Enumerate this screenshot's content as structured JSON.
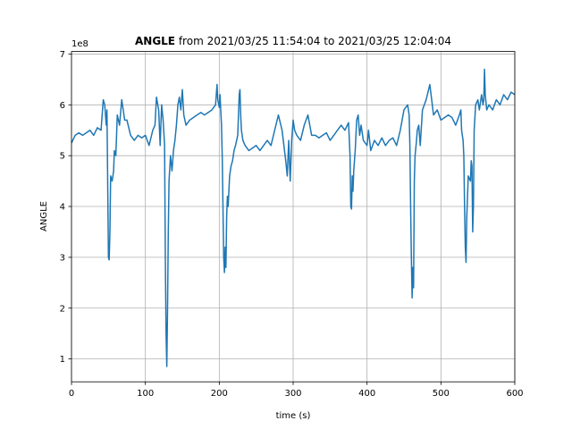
{
  "chart_data": {
    "type": "line",
    "title_bold": "ANGLE",
    "title_rest": " from 2021/03/25 11:54:04 to 2021/03/25 12:04:04",
    "xlabel": "time (s)",
    "ylabel": "ANGLE",
    "y_offset_text": "1e8",
    "xlim": [
      0,
      600
    ],
    "ylim": [
      0.55,
      7.05
    ],
    "xticks": [
      0,
      100,
      200,
      300,
      400,
      500,
      600
    ],
    "yticks": [
      1,
      2,
      3,
      4,
      5,
      6,
      7
    ],
    "grid": true,
    "line_color": "#1f77b4",
    "series": [
      {
        "x": [
          0,
          5,
          10,
          15,
          20,
          25,
          30,
          35,
          40,
          43,
          45,
          47,
          48,
          50,
          51,
          52,
          53,
          55,
          57,
          58,
          60,
          62,
          65,
          68,
          70,
          72,
          75,
          80,
          85,
          90,
          95,
          100,
          105,
          110,
          113,
          115,
          118,
          120,
          122,
          124,
          126,
          127,
          128,
          129,
          130,
          131,
          132,
          134,
          136,
          138,
          140,
          142,
          144,
          146,
          148,
          150,
          152,
          155,
          160,
          165,
          170,
          175,
          180,
          185,
          190,
          195,
          197,
          198,
          200,
          201,
          202,
          203,
          204,
          205,
          206,
          207,
          208,
          209,
          210,
          211,
          212,
          214,
          216,
          218,
          220,
          222,
          225,
          227,
          228,
          229,
          230,
          232,
          235,
          240,
          245,
          250,
          255,
          260,
          265,
          270,
          275,
          280,
          285,
          290,
          292,
          294,
          296,
          298,
          300,
          302,
          305,
          310,
          315,
          320,
          325,
          330,
          335,
          340,
          345,
          350,
          355,
          360,
          365,
          370,
          375,
          377,
          378,
          379,
          380,
          381,
          382,
          384,
          386,
          388,
          390,
          392,
          395,
          400,
          402,
          405,
          410,
          415,
          420,
          425,
          430,
          435,
          440,
          445,
          450,
          455,
          457,
          458,
          459,
          460,
          461,
          462,
          463,
          464,
          465,
          467,
          468,
          470,
          472,
          475,
          480,
          485,
          490,
          495,
          500,
          505,
          510,
          515,
          520,
          525,
          527,
          528,
          530,
          531,
          532,
          533,
          534,
          535,
          537,
          540,
          541,
          542,
          543,
          544,
          545,
          547,
          550,
          552,
          555,
          557,
          558,
          559,
          560,
          562,
          565,
          570,
          575,
          580,
          585,
          590,
          595,
          600
        ],
        "y": [
          5.25,
          5.4,
          5.45,
          5.4,
          5.45,
          5.5,
          5.4,
          5.55,
          5.5,
          6.1,
          6.0,
          5.6,
          5.9,
          3.0,
          2.95,
          3.5,
          4.6,
          4.5,
          4.7,
          5.1,
          5.0,
          5.8,
          5.6,
          6.1,
          5.9,
          5.7,
          5.7,
          5.4,
          5.3,
          5.4,
          5.35,
          5.4,
          5.2,
          5.5,
          5.6,
          6.15,
          5.9,
          5.2,
          6.0,
          5.7,
          5.2,
          3.0,
          1.5,
          0.85,
          2.0,
          3.5,
          4.5,
          5.0,
          4.7,
          5.1,
          5.3,
          5.6,
          6.0,
          6.15,
          5.9,
          6.3,
          5.8,
          5.6,
          5.7,
          5.75,
          5.8,
          5.85,
          5.8,
          5.85,
          5.9,
          6.0,
          6.4,
          6.1,
          5.95,
          6.2,
          5.9,
          5.6,
          5.0,
          4.0,
          3.0,
          2.7,
          3.2,
          2.8,
          3.8,
          4.2,
          4.0,
          4.6,
          4.8,
          4.9,
          5.1,
          5.2,
          5.4,
          6.2,
          6.3,
          5.8,
          5.5,
          5.3,
          5.2,
          5.1,
          5.15,
          5.2,
          5.1,
          5.2,
          5.3,
          5.2,
          5.5,
          5.8,
          5.5,
          4.9,
          4.6,
          5.3,
          4.5,
          5.3,
          5.7,
          5.5,
          5.4,
          5.3,
          5.6,
          5.8,
          5.4,
          5.4,
          5.35,
          5.4,
          5.45,
          5.3,
          5.4,
          5.5,
          5.6,
          5.5,
          5.65,
          5.0,
          4.0,
          3.95,
          4.6,
          4.3,
          4.7,
          5.1,
          5.7,
          5.8,
          5.4,
          5.6,
          5.3,
          5.2,
          5.5,
          5.1,
          5.3,
          5.2,
          5.35,
          5.2,
          5.3,
          5.35,
          5.2,
          5.5,
          5.9,
          6.0,
          5.8,
          5.2,
          4.0,
          3.0,
          2.2,
          2.8,
          2.4,
          4.5,
          5.0,
          5.3,
          5.5,
          5.6,
          5.2,
          5.9,
          6.1,
          6.4,
          5.8,
          5.9,
          5.7,
          5.75,
          5.8,
          5.75,
          5.6,
          5.8,
          5.9,
          5.5,
          5.3,
          5.0,
          4.0,
          3.2,
          2.9,
          3.8,
          4.6,
          4.5,
          4.9,
          4.8,
          3.5,
          4.0,
          5.5,
          6.0,
          6.1,
          5.9,
          6.2,
          6.0,
          6.1,
          6.7,
          6.2,
          5.9,
          6.0,
          5.9,
          6.1,
          6.0,
          6.2,
          6.1,
          6.25,
          6.2
        ]
      }
    ]
  }
}
